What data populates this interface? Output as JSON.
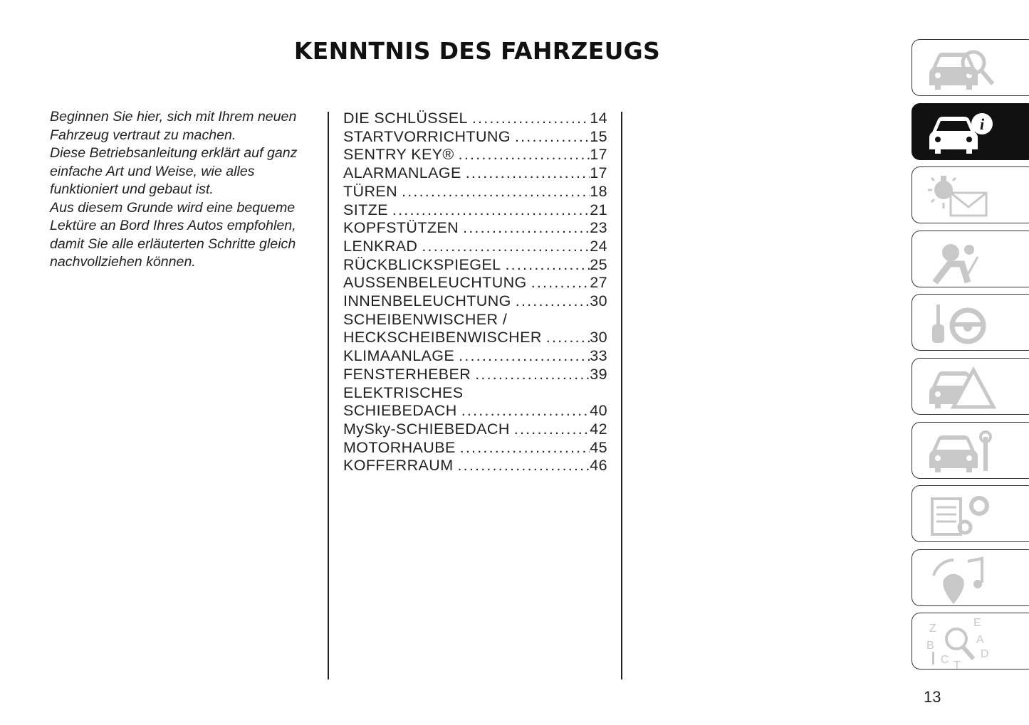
{
  "header": {
    "title": "KENNTNIS DES FAHRZEUGS"
  },
  "intro": [
    "Beginnen Sie hier, sich mit Ihrem neuen Fahrzeug vertraut zu machen.",
    "Diese Betriebsanleitung erklärt auf ganz einfache Art und Weise, wie alles funktioniert und gebaut ist.",
    "Aus diesem Grunde wird eine bequeme Lektüre an Bord Ihres Autos empfohlen, damit Sie alle erläuterten Schritte gleich nachvollziehen können."
  ],
  "toc": [
    {
      "pre": "",
      "title": "DIE SCHLÜSSEL",
      "page": "14"
    },
    {
      "pre": "",
      "title": "STARTVORRICHTUNG",
      "page": "15"
    },
    {
      "pre": "",
      "title": "SENTRY KEY®",
      "page": "17"
    },
    {
      "pre": "",
      "title": "ALARMANLAGE",
      "page": "17"
    },
    {
      "pre": "",
      "title": "TÜREN",
      "page": "18"
    },
    {
      "pre": "",
      "title": "SITZE",
      "page": "21"
    },
    {
      "pre": "",
      "title": "KOPFSTÜTZEN",
      "page": "23"
    },
    {
      "pre": "",
      "title": "LENKRAD",
      "page": "24"
    },
    {
      "pre": "",
      "title": "RÜCKBLICKSPIEGEL",
      "page": "25"
    },
    {
      "pre": "",
      "title": "AUSSENBELEUCHTUNG",
      "page": "27"
    },
    {
      "pre": "",
      "title": "INNENBELEUCHTUNG",
      "page": "30"
    },
    {
      "pre": "SCHEIBENWISCHER /",
      "title": "HECKSCHEIBENWISCHER",
      "page": "30"
    },
    {
      "pre": "",
      "title": "KLIMAANLAGE",
      "page": "33"
    },
    {
      "pre": "",
      "title": "FENSTERHEBER",
      "page": "39"
    },
    {
      "pre": "ELEKTRISCHES",
      "title": "SCHIEBEDACH",
      "page": "40"
    },
    {
      "pre": "",
      "title": "MySky-SCHIEBEDACH",
      "page": "42"
    },
    {
      "pre": "",
      "title": "MOTORHAUBE",
      "page": "45"
    },
    {
      "pre": "",
      "title": "KOFFERRAUM",
      "page": "46"
    }
  ],
  "tabs": [
    {
      "icon": "car-magnifier-icon",
      "active": false
    },
    {
      "icon": "car-info-icon",
      "active": true
    },
    {
      "icon": "warning-light-envelope-icon",
      "active": false
    },
    {
      "icon": "airbag-seatbelt-icon",
      "active": false
    },
    {
      "icon": "key-steering-wheel-icon",
      "active": false
    },
    {
      "icon": "car-warning-triangle-icon",
      "active": false
    },
    {
      "icon": "car-wrench-icon",
      "active": false
    },
    {
      "icon": "specs-gears-icon",
      "active": false
    },
    {
      "icon": "multimedia-icon",
      "active": false
    },
    {
      "icon": "index-alphabet-icon",
      "active": false
    }
  ],
  "colors": {
    "active_tab": "#111111",
    "inactive_icon": "#c8c8c8"
  },
  "page_number": "13"
}
